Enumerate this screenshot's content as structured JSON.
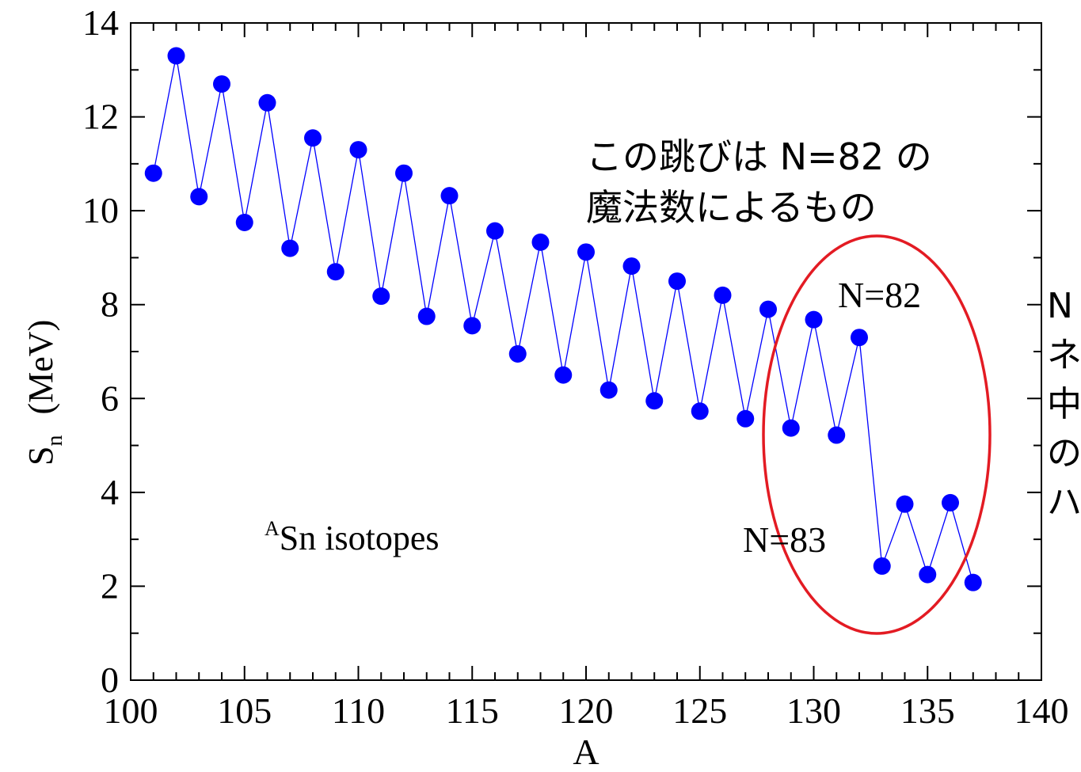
{
  "chart_data": {
    "type": "line",
    "xlabel": "A",
    "ylabel_main": "S",
    "ylabel_sub": "n",
    "ylabel_unit": "(MeV)",
    "xlim": [
      100,
      140
    ],
    "ylim": [
      0,
      14
    ],
    "xticks": [
      100,
      105,
      110,
      115,
      120,
      125,
      130,
      135,
      140
    ],
    "yticks": [
      0,
      2,
      4,
      6,
      8,
      10,
      12,
      14
    ],
    "x_minor_step": 1,
    "y_minor_step": 1,
    "grid": false,
    "series_color": "#0000ff",
    "series": [
      {
        "x": [
          101,
          102,
          103,
          104,
          105,
          106,
          107,
          108,
          109,
          110,
          111,
          112,
          113,
          114,
          115,
          116,
          117,
          118,
          119,
          120,
          121,
          122,
          123,
          124,
          125,
          126,
          127,
          128,
          129,
          130,
          131,
          132,
          133,
          134,
          135,
          136,
          137
        ],
        "values": [
          10.8,
          13.3,
          10.3,
          12.7,
          9.75,
          12.3,
          9.2,
          11.55,
          8.7,
          11.3,
          8.18,
          10.8,
          7.75,
          10.32,
          7.55,
          9.57,
          6.95,
          9.33,
          6.5,
          9.12,
          6.18,
          8.82,
          5.95,
          8.5,
          5.73,
          8.2,
          5.57,
          7.9,
          5.37,
          7.68,
          5.22,
          7.3,
          2.43,
          3.75,
          2.25,
          3.78,
          2.08
        ]
      }
    ],
    "inset_label_sup": "A",
    "inset_label_rest": "Sn isotopes",
    "annotations": {
      "n82": "N=82",
      "n83": "N=83"
    },
    "highlight_ellipse_color": "#e31b23"
  },
  "annotations": {
    "jump_line1": "この跳びは N=82 の",
    "jump_line2": "魔法数によるもの",
    "side_line1": "N",
    "side_line2": "ネ",
    "side_line3": "中",
    "side_line4": "の",
    "side_line5": "ハ"
  }
}
